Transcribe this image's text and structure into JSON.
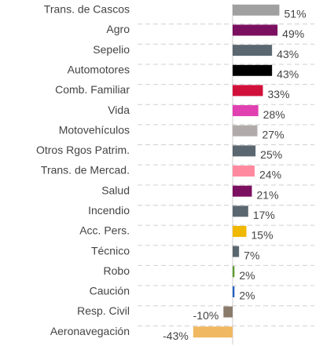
{
  "chart_data": {
    "type": "barh",
    "categories": [
      "Trans. de Cascos",
      "Agro",
      "Sepelio",
      "Automotores",
      "Comb. Familiar",
      "Vida",
      "Motovehículos",
      "Otros Rgos Patrim.",
      "Trans. de Mercad.",
      "Salud",
      "Incendio",
      "Acc. Pers.",
      "Técnico",
      "Robo",
      "Caución",
      "Resp. Civil",
      "Aeronavegación"
    ],
    "values": [
      51,
      49,
      43,
      43,
      33,
      28,
      27,
      25,
      24,
      21,
      17,
      15,
      7,
      2,
      2,
      -10,
      -43
    ],
    "value_labels": [
      "51%",
      "49%",
      "43%",
      "43%",
      "33%",
      "28%",
      "27%",
      "25%",
      "24%",
      "21%",
      "17%",
      "15%",
      "7%",
      "2%",
      "2%",
      "-10%",
      "-43%"
    ],
    "colors": [
      "#a0a0a0",
      "#7b1060",
      "#5b6770",
      "#000000",
      "#d0103a",
      "#e040b0",
      "#b0aaaa",
      "#5b6770",
      "#ff8aa0",
      "#7b1060",
      "#5b6770",
      "#f0b800",
      "#5b6770",
      "#5a9a30",
      "#2060c0",
      "#8a7a6a",
      "#f0b860"
    ],
    "xlim": [
      -60,
      60
    ]
  }
}
